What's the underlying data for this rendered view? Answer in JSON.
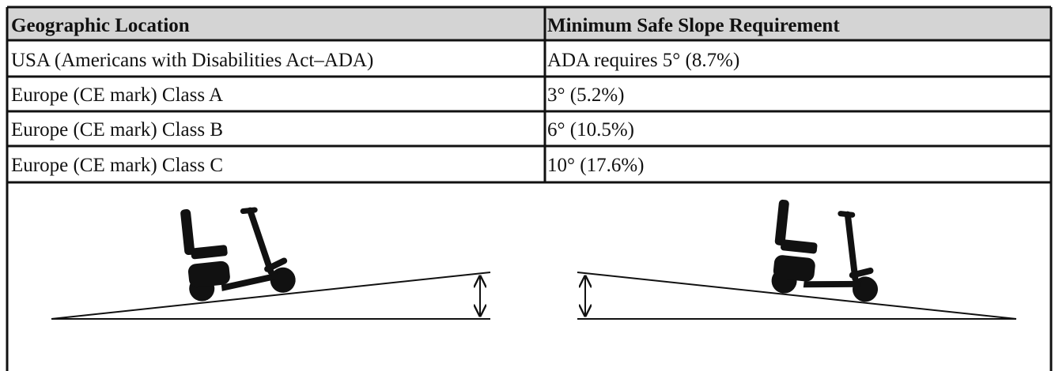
{
  "table": {
    "header": [
      "Geographic Location",
      "Minimum Safe Slope Requirement"
    ],
    "rows": [
      [
        "USA (Americans with Disabilities Act–ADA)",
        "ADA requires 5° (8.7%)"
      ],
      [
        "Europe (CE mark) Class A",
        "3° (5.2%)"
      ],
      [
        "Europe (CE mark) Class B",
        "6° (10.5%)"
      ],
      [
        "Europe (CE mark) Class C",
        "10° (17.6%)"
      ]
    ]
  }
}
